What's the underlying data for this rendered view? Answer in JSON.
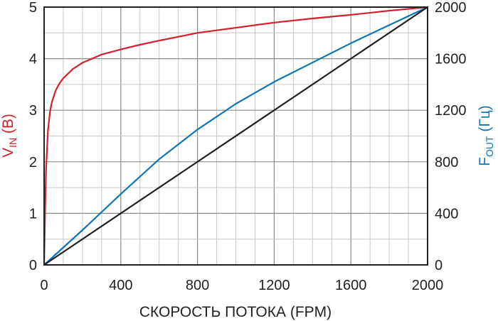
{
  "chart_data": {
    "type": "line",
    "xlabel": "СКОРОСТЬ ПОТОКА (FPM)",
    "ylabel_left": {
      "main": "V",
      "sub": "IN",
      "rest": " (В)",
      "color": "#d3202f"
    },
    "ylabel_right": {
      "main": "F",
      "sub": "OUT",
      "rest": " (Гц)",
      "color": "#0f75b6"
    },
    "xlim": [
      0,
      2000
    ],
    "ylim_left": [
      0,
      5
    ],
    "ylim_right": [
      0,
      2000
    ],
    "x_ticks": [
      "0",
      "400",
      "800",
      "1200",
      "1600",
      "2000"
    ],
    "y_left_ticks": [
      "0",
      "1",
      "2",
      "3",
      "4",
      "5"
    ],
    "y_right_ticks": [
      "0",
      "400",
      "800",
      "1200",
      "1600",
      "2000"
    ],
    "grid": true,
    "series": [
      {
        "axis": "left",
        "color": "#d3202f",
        "x": [
          0,
          5,
          10,
          20,
          30,
          40,
          60,
          80,
          100,
          150,
          200,
          300,
          400,
          500,
          600,
          800,
          1000,
          1200,
          1400,
          1600,
          1800,
          2000
        ],
        "y": [
          0,
          1.0,
          1.85,
          2.6,
          2.95,
          3.15,
          3.38,
          3.52,
          3.62,
          3.8,
          3.92,
          4.08,
          4.18,
          4.27,
          4.35,
          4.5,
          4.6,
          4.7,
          4.78,
          4.85,
          4.93,
          5.0
        ]
      },
      {
        "axis": "right",
        "color": "#0f75b6",
        "x": [
          0,
          200,
          400,
          600,
          800,
          1000,
          1200,
          1400,
          1600,
          1800,
          2000
        ],
        "y": [
          0,
          270,
          550,
          820,
          1050,
          1250,
          1420,
          1570,
          1720,
          1860,
          2000
        ]
      },
      {
        "axis": "right",
        "color": "#231f20",
        "x": [
          0,
          2000
        ],
        "y": [
          0,
          2000
        ]
      }
    ]
  }
}
